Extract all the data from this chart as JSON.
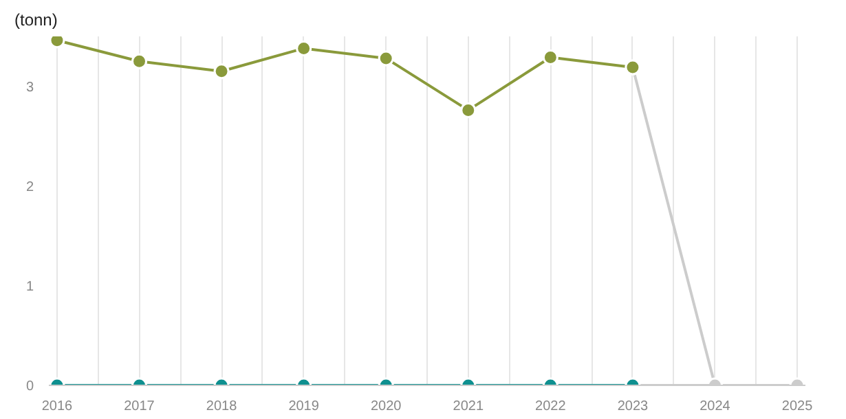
{
  "chart_data": {
    "type": "line",
    "ylabel": "(tonn)",
    "x": [
      2016,
      2017,
      2018,
      2019,
      2020,
      2021,
      2022,
      2023
    ],
    "series": [
      {
        "color": "#cccccc",
        "x": [
          2023,
          2024,
          2025
        ],
        "values": [
          3.19,
          0,
          0
        ],
        "marker": "circle"
      },
      {
        "color": "#cccccc",
        "x": [
          2023,
          2024
        ],
        "values": [
          0,
          0
        ],
        "marker": "none"
      },
      {
        "color": "#8a9a3b",
        "values": [
          3.46,
          3.25,
          3.15,
          3.38,
          3.28,
          2.76,
          3.29,
          3.19
        ],
        "marker": "circle"
      },
      {
        "color": "#0f9090",
        "values": [
          0,
          0,
          0,
          0,
          0,
          0,
          0,
          0
        ],
        "marker": "circle"
      }
    ],
    "xlim": [
      2015.9,
      2025.1
    ],
    "ylim": [
      0,
      3.5
    ],
    "xticks": [
      2016,
      {
        "value": 2016.5,
        "label": null
      },
      2017,
      {
        "value": 2017.5,
        "label": null
      },
      2018,
      {
        "value": 2018.5,
        "label": null
      },
      2019,
      {
        "value": 2019.5,
        "label": null
      },
      2020,
      {
        "value": 2020.5,
        "label": null
      },
      2021,
      {
        "value": 2021.5,
        "label": null
      },
      2022,
      {
        "value": 2022.5,
        "label": null
      },
      2023,
      {
        "value": 2023.5,
        "label": null
      },
      2024,
      {
        "value": 2024.5,
        "label": null
      },
      2025
    ],
    "yticks": [
      0,
      1,
      2,
      3
    ],
    "grid": "x"
  }
}
